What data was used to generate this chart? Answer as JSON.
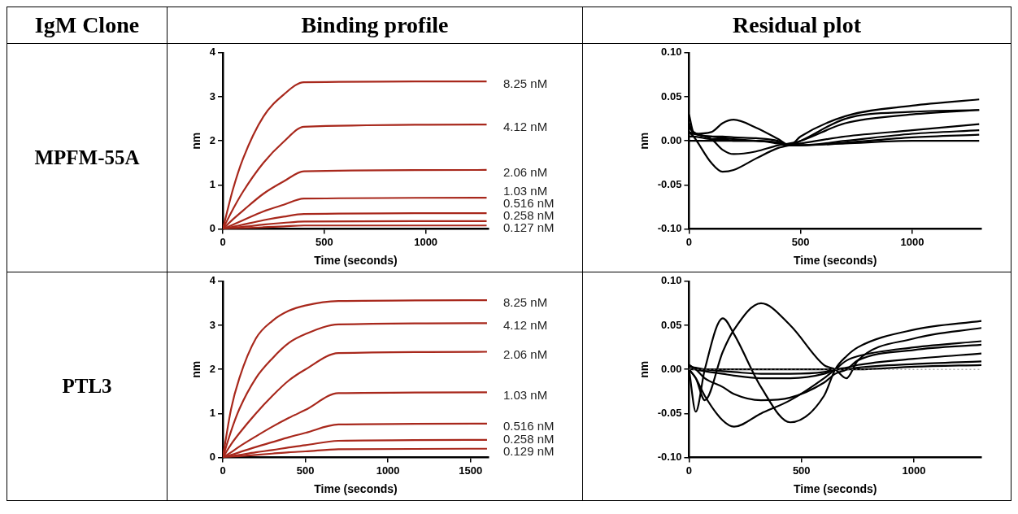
{
  "chart_data": [
    {
      "type": "line",
      "title": "Binding profile",
      "annotations": [
        "IgM Clone",
        "MPFM-55A"
      ],
      "xlabel": "Time (seconds)",
      "ylabel": "nm",
      "xlim": [
        0,
        1310
      ],
      "xticks": [
        0,
        500,
        1000
      ],
      "ylim": [
        0,
        4
      ],
      "yticks": [
        0,
        1,
        2,
        3,
        4
      ],
      "grid": false,
      "legend": false,
      "x": [
        0,
        50,
        100,
        200,
        300,
        400,
        1300
      ],
      "series": [
        {
          "name": "8.25 nM",
          "color": "#a8281c",
          "values": [
            0,
            0.9,
            1.6,
            2.55,
            3.05,
            3.33,
            3.35
          ]
        },
        {
          "name": "4.12 nM",
          "color": "#a8281c",
          "values": [
            0,
            0.45,
            0.85,
            1.5,
            1.98,
            2.32,
            2.37
          ]
        },
        {
          "name": "2.06 nM",
          "color": "#a8281c",
          "values": [
            0,
            0.22,
            0.42,
            0.8,
            1.08,
            1.31,
            1.34
          ]
        },
        {
          "name": "1.03 nM",
          "color": "#a8281c",
          "values": [
            0,
            0.1,
            0.2,
            0.4,
            0.55,
            0.69,
            0.71
          ]
        },
        {
          "name": "0.516 nM",
          "color": "#a8281c",
          "values": [
            0,
            0.05,
            0.1,
            0.2,
            0.28,
            0.34,
            0.36
          ]
        },
        {
          "name": "0.258 nM",
          "color": "#a8281c",
          "values": [
            0,
            0.03,
            0.05,
            0.1,
            0.14,
            0.17,
            0.18
          ]
        },
        {
          "name": "0.127 nM",
          "color": "#a8281c",
          "values": [
            0,
            0.01,
            0.02,
            0.04,
            0.06,
            0.08,
            0.08
          ]
        }
      ]
    },
    {
      "type": "line",
      "title": "Residual plot",
      "xlabel": "Time (seconds)",
      "ylabel": "nm",
      "xlim": [
        0,
        1310
      ],
      "xticks": [
        0,
        500,
        1000
      ],
      "ylim": [
        -0.1,
        0.1
      ],
      "yticks": [
        {
          "value": -0.1,
          "label": "-0.10"
        },
        {
          "value": -0.05,
          "label": "-0.05"
        },
        {
          "value": 0,
          "label": "0.00"
        },
        {
          "value": 0.05,
          "label": "0.05"
        },
        {
          "value": 0.1,
          "label": "0.10"
        }
      ],
      "grid": false,
      "legend": false,
      "x": [
        0,
        20,
        100,
        150,
        200,
        300,
        400,
        450,
        500,
        700,
        1000,
        1300
      ],
      "series": [
        {
          "color": "#000000",
          "values": [
            0.03,
            0.01,
            0.005,
            0.003,
            0.002,
            0.0,
            -0.002,
            -0.005,
            0.005,
            0.028,
            0.04,
            0.047
          ]
        },
        {
          "color": "#000000",
          "values": [
            0.02,
            0.008,
            0.01,
            0.02,
            0.024,
            0.015,
            0.002,
            -0.005,
            0.0,
            0.025,
            0.033,
            0.035
          ]
        },
        {
          "color": "#000000",
          "values": [
            0.015,
            0.01,
            0.002,
            -0.01,
            -0.015,
            -0.012,
            -0.005,
            -0.003,
            0.0,
            0.02,
            0.03,
            0.035
          ]
        },
        {
          "color": "#000000",
          "values": [
            0.01,
            0.005,
            -0.025,
            -0.035,
            -0.033,
            -0.02,
            -0.008,
            -0.005,
            -0.003,
            0.005,
            0.012,
            0.019
          ]
        },
        {
          "color": "#000000",
          "values": [
            0.01,
            0.008,
            0.005,
            0.005,
            0.004,
            0.003,
            0.0,
            -0.005,
            -0.005,
            0.0,
            0.008,
            0.012
          ]
        },
        {
          "color": "#000000",
          "values": [
            0.005,
            0.005,
            0.002,
            0.002,
            0.0,
            0.0,
            -0.002,
            -0.005,
            -0.005,
            -0.002,
            0.004,
            0.007
          ]
        },
        {
          "color": "#000000",
          "values": [
            0.0,
            0.0,
            0.0,
            0.0,
            0.0,
            0.0,
            -0.003,
            -0.005,
            -0.005,
            -0.003,
            0.0,
            0.0
          ]
        }
      ]
    },
    {
      "type": "line",
      "annotations": [
        "PTL3"
      ],
      "xlabel": "Time (seconds)",
      "ylabel": "nm",
      "xlim": [
        0,
        1610
      ],
      "xticks": [
        0,
        500,
        1000,
        1500
      ],
      "ylim": [
        0,
        4
      ],
      "yticks": [
        0,
        1,
        2,
        3,
        4
      ],
      "grid": false,
      "legend": false,
      "x": [
        0,
        50,
        100,
        200,
        300,
        400,
        500,
        700,
        1600
      ],
      "series": [
        {
          "name": "8.25 nM",
          "color": "#a8281c",
          "values": [
            0,
            1.1,
            1.8,
            2.7,
            3.1,
            3.33,
            3.45,
            3.55,
            3.57
          ]
        },
        {
          "name": "4.12 nM",
          "color": "#a8281c",
          "values": [
            0,
            0.6,
            1.1,
            1.8,
            2.25,
            2.6,
            2.8,
            3.02,
            3.05
          ]
        },
        {
          "name": "2.06 nM",
          "color": "#a8281c",
          "values": [
            0,
            0.3,
            0.55,
            1.0,
            1.4,
            1.75,
            2.0,
            2.37,
            2.4
          ]
        },
        {
          "name": "1.03 nM",
          "color": "#a8281c",
          "values": [
            0,
            0.12,
            0.25,
            0.48,
            0.7,
            0.9,
            1.08,
            1.46,
            1.48
          ]
        },
        {
          "name": "0.516 nM",
          "color": "#a8281c",
          "values": [
            0,
            0.06,
            0.12,
            0.24,
            0.35,
            0.46,
            0.56,
            0.75,
            0.77
          ]
        },
        {
          "name": "0.258 nM",
          "color": "#a8281c",
          "values": [
            0,
            0.03,
            0.06,
            0.12,
            0.17,
            0.23,
            0.28,
            0.38,
            0.4
          ]
        },
        {
          "name": "0.129 nM",
          "color": "#a8281c",
          "values": [
            0,
            0.015,
            0.03,
            0.06,
            0.09,
            0.12,
            0.14,
            0.19,
            0.2
          ]
        }
      ]
    },
    {
      "type": "line",
      "xlabel": "Time (seconds)",
      "ylabel": "nm",
      "xlim": [
        0,
        1300
      ],
      "xticks": [
        0,
        500,
        1000
      ],
      "ylim": [
        -0.1,
        0.1
      ],
      "yticks": [
        {
          "value": -0.1,
          "label": "-0.10"
        },
        {
          "value": -0.05,
          "label": "-0.05"
        },
        {
          "value": 0,
          "label": "0.00"
        },
        {
          "value": 0.05,
          "label": "0.05"
        },
        {
          "value": 0.1,
          "label": "0.10"
        }
      ],
      "grid": false,
      "legend": false,
      "ref_lines": [
        {
          "axis": "y",
          "value": 0,
          "color": "#888888",
          "line_style": "dotted"
        }
      ],
      "x": [
        0,
        30,
        70,
        150,
        200,
        320,
        450,
        600,
        650,
        700,
        750,
        1000,
        1300
      ],
      "series": [
        {
          "color": "#000000",
          "values": [
            0,
            -0.048,
            0.0,
            0.058,
            0.04,
            -0.02,
            -0.06,
            -0.03,
            0.0,
            0.015,
            0.025,
            0.045,
            0.055
          ]
        },
        {
          "color": "#000000",
          "values": [
            0,
            -0.01,
            -0.035,
            0.02,
            0.045,
            0.075,
            0.05,
            0.005,
            0.0,
            -0.01,
            0.01,
            0.035,
            0.047
          ]
        },
        {
          "color": "#000000",
          "values": [
            0,
            -0.01,
            -0.03,
            -0.058,
            -0.065,
            -0.05,
            -0.035,
            -0.01,
            0.0,
            0.01,
            0.015,
            0.025,
            0.032
          ]
        },
        {
          "color": "#000000",
          "values": [
            0.005,
            0.0,
            -0.01,
            -0.02,
            -0.028,
            -0.035,
            -0.032,
            -0.015,
            -0.005,
            0.0,
            0.01,
            0.022,
            0.028
          ]
        },
        {
          "color": "#000000",
          "values": [
            0.005,
            0.0,
            -0.002,
            -0.005,
            -0.007,
            -0.01,
            -0.01,
            -0.005,
            0.0,
            0.002,
            0.005,
            0.012,
            0.018
          ]
        },
        {
          "color": "#000000",
          "values": [
            0.003,
            0.002,
            0.0,
            -0.002,
            -0.003,
            -0.005,
            -0.005,
            -0.003,
            0.0,
            0.0,
            0.002,
            0.006,
            0.009
          ]
        },
        {
          "color": "#000000",
          "values": [
            0.0,
            0.0,
            0.0,
            0.0,
            0.0,
            0.0,
            0.0,
            0.0,
            0.0,
            0.0,
            0.0,
            0.003,
            0.005
          ]
        }
      ]
    }
  ]
}
